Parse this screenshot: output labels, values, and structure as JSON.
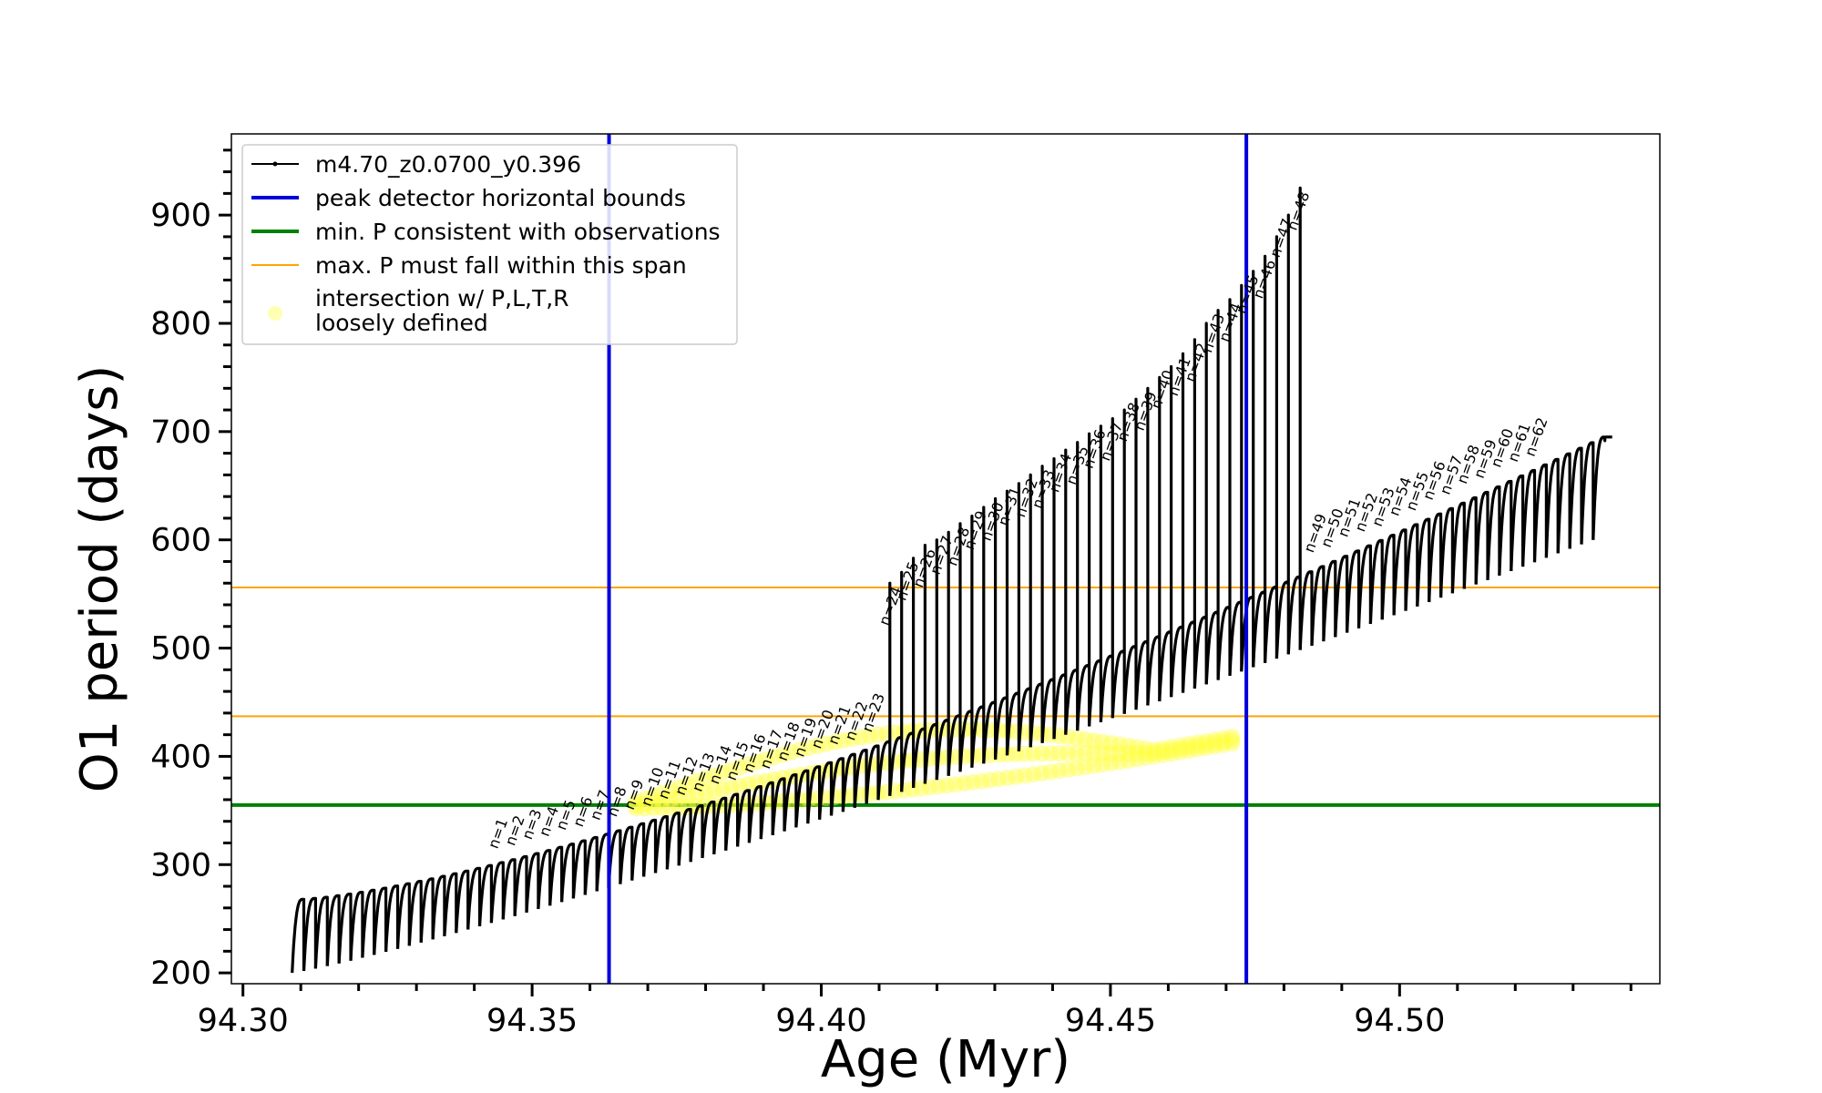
{
  "chart_data": {
    "type": "line",
    "title": "",
    "xlabel": "Age (Myr)",
    "ylabel": "O1 period (days)",
    "xlim": [
      94.298,
      94.545
    ],
    "ylim": [
      190,
      975
    ],
    "xticks": [
      94.3,
      94.35,
      94.4,
      94.45,
      94.5
    ],
    "xtick_labels": [
      "94.30",
      "94.35",
      "94.40",
      "94.45",
      "94.50"
    ],
    "yticks": [
      200,
      300,
      400,
      500,
      600,
      700,
      800,
      900
    ],
    "ytick_labels": [
      "200",
      "300",
      "400",
      "500",
      "600",
      "700",
      "800",
      "900"
    ],
    "grid": false,
    "legend_position": "top-left",
    "legend": [
      {
        "key": "track",
        "label": "m4.70_z0.0700_y0.396",
        "color": "#000000",
        "style": "line-marker"
      },
      {
        "key": "bounds",
        "label": "peak detector horizontal bounds",
        "color": "#0000dd",
        "style": "thick-line"
      },
      {
        "key": "minP",
        "label": "min. P consistent with observations",
        "color": "#008000",
        "style": "thick-line"
      },
      {
        "key": "maxP",
        "label": "max. P must fall within this span",
        "color": "#ffa500",
        "style": "thin-line"
      },
      {
        "key": "intersection",
        "label_lines": [
          "intersection w/ P,L,T,R",
          "loosely defined"
        ],
        "color": "#ffff66",
        "style": "marker"
      }
    ],
    "series": [
      {
        "name": "m4.70_z0.0700_y0.396",
        "kind": "pulse-cycles",
        "color": "#000000",
        "x_start": 94.3085,
        "x_end": 94.5355,
        "cycle_count": 112,
        "cycle_base_start": 200,
        "cycle_base_end": 600,
        "cycle_peak_start": 268,
        "cycle_peak_end": 695,
        "final_value": 695,
        "spike_start_index": 50,
        "spike_values": [
          560,
          570,
          583,
          595,
          600,
          607,
          615,
          622,
          630,
          638,
          645,
          652,
          660,
          668,
          675,
          683,
          690,
          698,
          705,
          712,
          720,
          730,
          740,
          750,
          760,
          772,
          785,
          800,
          812,
          822,
          835,
          848,
          862,
          880,
          900,
          925
        ]
      }
    ],
    "vlines": [
      {
        "x": 94.3633,
        "color": "#0000dd"
      },
      {
        "x": 94.4735,
        "color": "#0000dd"
      }
    ],
    "hlines": [
      {
        "y": 355,
        "color": "#008000",
        "kind": "thick"
      },
      {
        "y": 437,
        "color": "#ffa500",
        "kind": "thin"
      },
      {
        "y": 556,
        "color": "#ffa500",
        "kind": "thin"
      }
    ],
    "intersection_region": {
      "color": "#ffff44",
      "x_range": [
        94.368,
        94.471
      ],
      "lower_y_start": 352,
      "lower_y_end": 412,
      "upper_y_start": 360,
      "upper_y_end": 420
    },
    "annotations": [
      "n=1",
      "n=2",
      "n=3",
      "n=4",
      "n=5",
      "n=6",
      "n=7",
      "n=8",
      "n=9",
      "n=10",
      "n=11",
      "n=12",
      "n=13",
      "n=14",
      "n=15",
      "n=16",
      "n=17",
      "n=18",
      "n=19",
      "n=20",
      "n=21",
      "n=22",
      "n=23",
      "n=24",
      "n=25",
      "n=26",
      "n=27",
      "n=28",
      "n=29",
      "n=30",
      "n=31",
      "n=32",
      "n=33",
      "n=34",
      "n=35",
      "n=36",
      "n=37",
      "n=38",
      "n=39",
      "n=40",
      "n=41",
      "n=42",
      "n=43",
      "n=44",
      "n=45",
      "n=46",
      "n=47",
      "n=48",
      "n=49",
      "n=50",
      "n=51",
      "n=52",
      "n=53",
      "n=54",
      "n=55",
      "n=56",
      "n=57",
      "n=58",
      "n=59",
      "n=60",
      "n=61",
      "n=62"
    ]
  }
}
